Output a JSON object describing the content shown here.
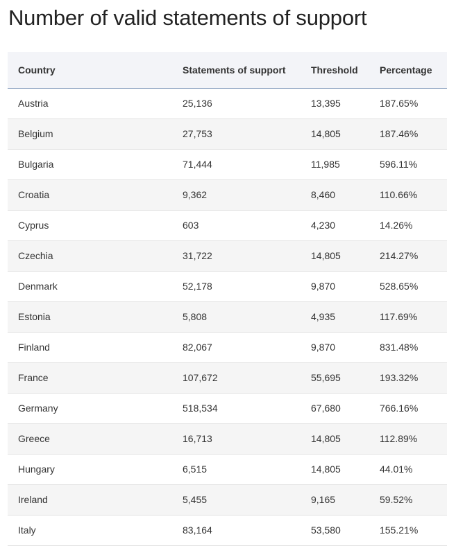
{
  "title": "Number of valid statements of support",
  "table": {
    "headers": [
      "Country",
      "Statements of support",
      "Threshold",
      "Percentage"
    ],
    "rows": [
      [
        "Austria",
        "25,136",
        "13,395",
        "187.65%"
      ],
      [
        "Belgium",
        "27,753",
        "14,805",
        "187.46%"
      ],
      [
        "Bulgaria",
        "71,444",
        "11,985",
        "596.11%"
      ],
      [
        "Croatia",
        "9,362",
        "8,460",
        "110.66%"
      ],
      [
        "Cyprus",
        "603",
        "4,230",
        "14.26%"
      ],
      [
        "Czechia",
        "31,722",
        "14,805",
        "214.27%"
      ],
      [
        "Denmark",
        "52,178",
        "9,870",
        "528.65%"
      ],
      [
        "Estonia",
        "5,808",
        "4,935",
        "117.69%"
      ],
      [
        "Finland",
        "82,067",
        "9,870",
        "831.48%"
      ],
      [
        "France",
        "107,672",
        "55,695",
        "193.32%"
      ],
      [
        "Germany",
        "518,534",
        "67,680",
        "766.16%"
      ],
      [
        "Greece",
        "16,713",
        "14,805",
        "112.89%"
      ],
      [
        "Hungary",
        "6,515",
        "14,805",
        "44.01%"
      ],
      [
        "Ireland",
        "5,455",
        "9,165",
        "59.52%"
      ],
      [
        "Italy",
        "83,164",
        "53,580",
        "155.21%"
      ]
    ]
  },
  "colors": {
    "header_bg": "#f3f4f8",
    "header_border": "#8a9fbf",
    "stripe": "#f5f5f5",
    "row_border": "#e2e2e2",
    "text": "#333333"
  }
}
